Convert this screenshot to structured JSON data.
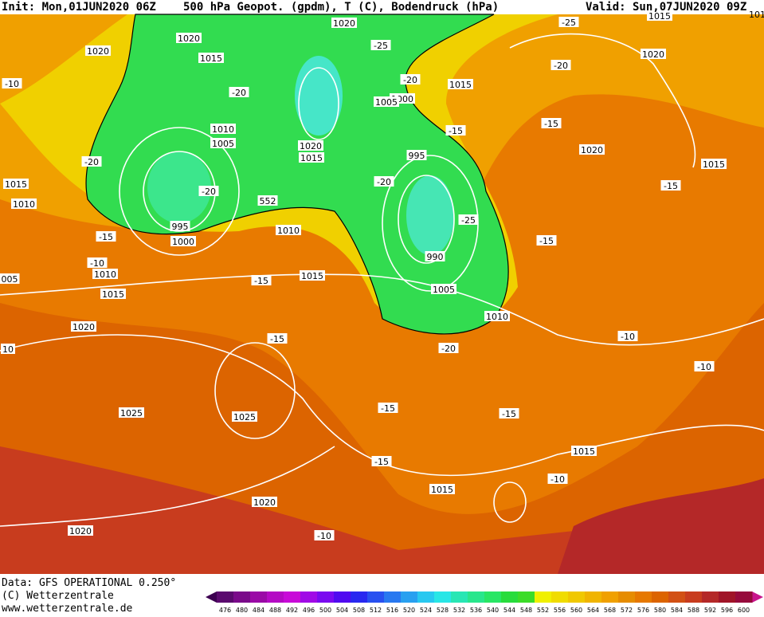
{
  "header": {
    "init": "Init: Mon,01JUN2020 06Z",
    "title": "500 hPa Geopot. (gpdm), T (C), Bodendruck (hPa)",
    "valid": "Valid: Sun,07JUN2020 09Z"
  },
  "footer": {
    "data": "Data: GFS OPERATIONAL 0.250°",
    "copyright": "(C) Wetterzentrale",
    "url": "www.wetterzentrale.de"
  },
  "map": {
    "labels": [
      "1020",
      "1020",
      "1015",
      "-25",
      "1020",
      "-10",
      "-20",
      "1010",
      "1005",
      "1020",
      "1015",
      "-20",
      "995",
      "1000",
      "552",
      "1010",
      "1015",
      "-15",
      "-10",
      "1010",
      "1015",
      "1010",
      "-20",
      "995",
      "1000",
      "1005",
      "-15",
      "-20",
      "-25",
      "990",
      "1005",
      "1010",
      "1015",
      "-25",
      "1015",
      "-20",
      "1020",
      "-20",
      "-15",
      "1020",
      "1015",
      "-15",
      "-15",
      "-15",
      "1020",
      "-15",
      "-10",
      "1025",
      "1025",
      "-15",
      "-15",
      "-15",
      "1015",
      "1015",
      "-10",
      "1020",
      "1020",
      "-10",
      "-10",
      "-20",
      "005",
      "10",
      "1015",
      "1015"
    ]
  },
  "legend": {
    "labels": [
      476,
      480,
      484,
      488,
      492,
      496,
      500,
      504,
      508,
      512,
      516,
      520,
      524,
      528,
      532,
      536,
      540,
      544,
      548,
      552,
      556,
      560,
      564,
      568,
      572,
      576,
      580,
      584,
      588,
      592,
      596,
      600
    ],
    "colors": [
      "#5a0a6e",
      "#7a0a8a",
      "#9a0aa6",
      "#b40ac4",
      "#c80ad8",
      "#a00ae6",
      "#7a0af0",
      "#500af0",
      "#2828f0",
      "#2850f0",
      "#2878f0",
      "#28a0f0",
      "#28c8f0",
      "#28e6e6",
      "#28e6b4",
      "#28e68c",
      "#28e664",
      "#28dc3c",
      "#3cdc28",
      "#f0f000",
      "#f0dc00",
      "#f0c800",
      "#f0b400",
      "#f0a000",
      "#e68c00",
      "#e67800",
      "#dc6400",
      "#d25014",
      "#c83c1e",
      "#b42828",
      "#a01428",
      "#960a3c"
    ]
  }
}
